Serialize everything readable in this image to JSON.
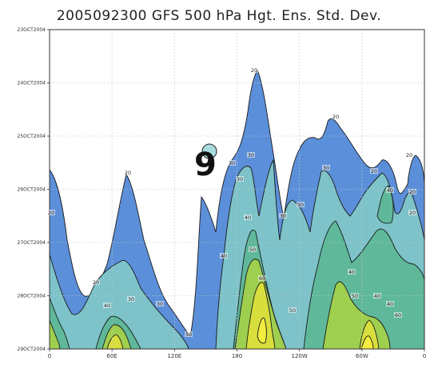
{
  "chart_data": {
    "type": "contour",
    "title": "2005092300  GFS  500  hPa  Hgt.  Ens.  Std.  Dev.",
    "xlabel": "",
    "ylabel": "",
    "x_tick_labels": [
      "0",
      "60E",
      "120E",
      "180",
      "120W",
      "60W",
      "0"
    ],
    "y_tick_labels": [
      "23OCT2004",
      "24OCT2004",
      "25OCT2004",
      "26OCT2004",
      "27OCT2004",
      "28OCT2004",
      "29OCT2004"
    ],
    "contour_levels": [
      20,
      30,
      40,
      50,
      60
    ],
    "level_colors": [
      "#5b8fd9",
      "#7dc3c9",
      "#5fb89a",
      "#9fcf4e",
      "#d8de3c",
      "#f3ec3e"
    ],
    "contour_labels": [
      "20",
      "20",
      "20",
      "20",
      "20",
      "20",
      "20",
      "20",
      "20",
      "30",
      "30",
      "30",
      "30",
      "30",
      "30",
      "30",
      "30",
      "40",
      "40",
      "40",
      "40",
      "40",
      "40",
      "40",
      "50",
      "50",
      "50",
      "50",
      "60",
      "60"
    ],
    "storm_symbol": "9",
    "grid": true
  }
}
